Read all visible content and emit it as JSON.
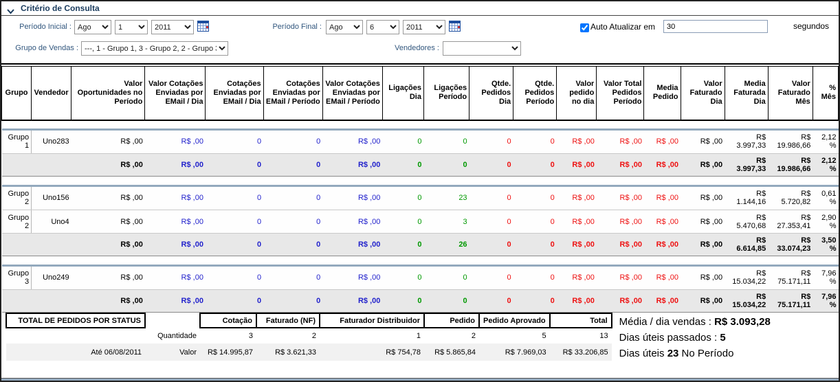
{
  "panel": {
    "title": "Critério de Consulta",
    "periodo_inicial": {
      "label": "Período Inicial :",
      "month": "Ago",
      "day": "1",
      "year": "2011"
    },
    "periodo_final": {
      "label": "Período Final :",
      "month": "Ago",
      "day": "6",
      "year": "2011"
    },
    "auto_atualizar": {
      "label": "Auto Atualizar em",
      "checked": true,
      "value": "30",
      "suffix": "segundos"
    },
    "grupo_vendas": {
      "label": "Grupo de Vendas :",
      "value": "---, 1 - Grupo 1, 3 - Grupo 2, 2 - Grupo 3"
    },
    "vendedores": {
      "label": "Vendedores :",
      "value": ""
    }
  },
  "report": {
    "columns": [
      "Grupo",
      "Vendedor",
      "Valor Oportunidades no Período",
      "Valor Cotações Enviadas por EMail / Dia",
      "Cotações Enviadas por EMail / Dia",
      "Cotações Enviadas por EMail / Período",
      "Valor Cotações Enviadas por EMail / Período",
      "Ligações Dia",
      "Ligações Período",
      "Qtde. Pedidos Dia",
      "Qtde. Pedidos Período",
      "Valor pedido no dia",
      "Valor Total Pedidos Período",
      "Media Pedido",
      "Valor Faturado Dia",
      "Media Faturada Dia",
      "Valor Faturado Mês",
      "% Mês"
    ],
    "value_colors": [
      "black",
      "blue",
      "blue",
      "blue",
      "blue",
      "green",
      "green",
      "red",
      "red",
      "red",
      "red",
      "red",
      "black",
      "black",
      "black",
      "black"
    ],
    "groups": [
      {
        "rows": [
          {
            "grupo": "Grupo 1",
            "vendedor": "Uno283",
            "values": [
              "R$ ,00",
              "R$ ,00",
              "0",
              "0",
              "R$ ,00",
              "0",
              "0",
              "0",
              "0",
              "R$ ,00",
              "R$ ,00",
              "R$ ,00",
              "R$ ,00",
              "R$ 3.997,33",
              "R$ 19.986,66",
              "2,12 %"
            ]
          }
        ],
        "subtotal": [
          "R$ ,00",
          "R$ ,00",
          "0",
          "0",
          "R$ ,00",
          "0",
          "0",
          "0",
          "0",
          "R$ ,00",
          "R$ ,00",
          "R$ ,00",
          "R$ ,00",
          "R$ 3.997,33",
          "R$ 19.986,66",
          "2,12 %"
        ]
      },
      {
        "rows": [
          {
            "grupo": "Grupo 2",
            "vendedor": "Uno156",
            "values": [
              "R$ ,00",
              "R$ ,00",
              "0",
              "0",
              "R$ ,00",
              "0",
              "23",
              "0",
              "0",
              "R$ ,00",
              "R$ ,00",
              "R$ ,00",
              "R$ ,00",
              "R$ 1.144,16",
              "R$ 5.720,82",
              "0,61 %"
            ]
          },
          {
            "grupo": "Grupo 2",
            "vendedor": "Uno4",
            "values": [
              "R$ ,00",
              "R$ ,00",
              "0",
              "0",
              "R$ ,00",
              "0",
              "3",
              "0",
              "0",
              "R$ ,00",
              "R$ ,00",
              "R$ ,00",
              "R$ ,00",
              "R$ 5.470,68",
              "R$ 27.353,41",
              "2,90 %"
            ]
          }
        ],
        "subtotal": [
          "R$ ,00",
          "R$ ,00",
          "0",
          "0",
          "R$ ,00",
          "0",
          "26",
          "0",
          "0",
          "R$ ,00",
          "R$ ,00",
          "R$ ,00",
          "R$ ,00",
          "R$ 6.614,85",
          "R$ 33.074,23",
          "3,50 %"
        ]
      },
      {
        "rows": [
          {
            "grupo": "Grupo 3",
            "vendedor": "Uno249",
            "values": [
              "R$ ,00",
              "R$ ,00",
              "0",
              "0",
              "R$ ,00",
              "0",
              "0",
              "0",
              "0",
              "R$ ,00",
              "R$ ,00",
              "R$ ,00",
              "R$ ,00",
              "R$ 15.034,22",
              "R$ 75.171,11",
              "7,96 %"
            ]
          }
        ],
        "subtotal": [
          "R$ ,00",
          "R$ ,00",
          "0",
          "0",
          "R$ ,00",
          "0",
          "0",
          "0",
          "0",
          "R$ ,00",
          "R$ ,00",
          "R$ ,00",
          "R$ ,00",
          "R$ 15.034,22",
          "R$ 75.171,11",
          "7,96 %"
        ]
      }
    ]
  },
  "status": {
    "title": "TOTAL DE PEDIDOS POR STATUS",
    "columns": [
      "Cotação",
      "Faturado (NF)",
      "Faturador Distribuidor",
      "Pedido",
      "Pedido Aprovado",
      "Total"
    ],
    "rows": [
      {
        "date": "",
        "label": "Quantidade",
        "values": [
          "3",
          "2",
          "1",
          "2",
          "5",
          "13"
        ]
      },
      {
        "date": "Até 06/08/2011",
        "label": "Valor",
        "values": [
          "R$ 14.995,87",
          "R$ 3.621,33",
          "R$ 754,78",
          "R$ 5.865,84",
          "R$ 7.969,03",
          "R$ 33.206,85"
        ]
      }
    ]
  },
  "summary": {
    "lines": [
      {
        "pre": "Média / dia vendas : ",
        "bold": "R$ 3.093,28",
        "post": ""
      },
      {
        "pre": "Dias úteis passados : ",
        "bold": "5",
        "post": ""
      },
      {
        "pre": "Dias úteis ",
        "bold": "23",
        "post": " No Período"
      }
    ]
  },
  "colors": {
    "blue": "#2222cc",
    "green": "#009900",
    "red": "#ee1111",
    "band": "#93a9bd",
    "label": "#31567d",
    "title": "#1a3b5d"
  }
}
